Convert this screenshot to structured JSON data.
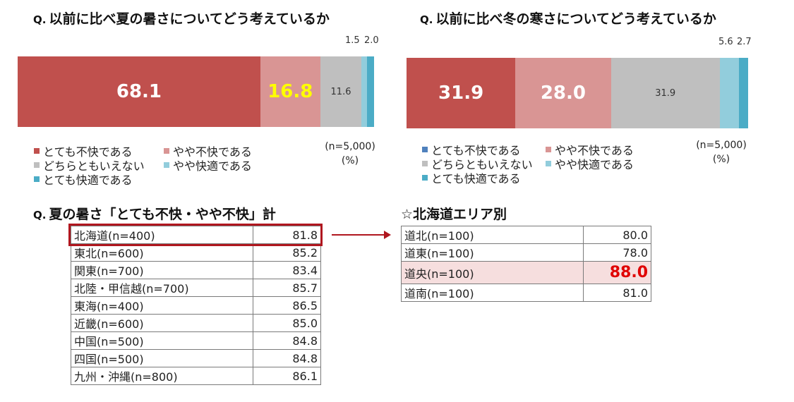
{
  "colors": {
    "very_uncomfortable": "#c0504d",
    "somewhat_uncomfortable": "#d99594",
    "neither": "#bfbfbf",
    "somewhat_comfortable": "#92cddc",
    "very_comfortable": "#4bacc6",
    "legend_very_uncomfortable_winter": "#4f81bd",
    "highlight": "#b0171f"
  },
  "chart_data": [
    {
      "type": "bar",
      "orientation": "horizontal-stacked-100",
      "title_prefix": "Q.",
      "title": "以前に比べ夏の暑さについてどう考えているか",
      "categories": [
        "とても不快である",
        "やや不快である",
        "どちらともいえない",
        "やや快適である",
        "とても快適である"
      ],
      "values": [
        68.1,
        16.8,
        11.6,
        1.5,
        2.0
      ],
      "labels": [
        "68.1",
        "16.8",
        "11.6",
        "1.5",
        "2.0"
      ],
      "note_n": "(n=5,000)",
      "note_unit": "(%)"
    },
    {
      "type": "bar",
      "orientation": "horizontal-stacked-100",
      "title_prefix": "Q.",
      "title": "以前に比べ冬の寒さについてどう考えているか",
      "categories": [
        "とても不快である",
        "やや不快である",
        "どちらともいえない",
        "やや快適である",
        "とても快適である"
      ],
      "values": [
        31.9,
        28.0,
        31.9,
        5.6,
        2.7
      ],
      "labels": [
        "31.9",
        "28.0",
        "31.9",
        "5.6",
        "2.7"
      ],
      "note_n": "(n=5,000)",
      "note_unit": "(%)"
    },
    {
      "type": "table",
      "title_prefix": "Q.",
      "title": "夏の暑さ「とても不快・やや不快」計",
      "rows": [
        {
          "region": "北海道(n=400)",
          "value": "81.8"
        },
        {
          "region": "東北(n=600)",
          "value": "85.2"
        },
        {
          "region": "関東(n=700)",
          "value": "83.4"
        },
        {
          "region": "北陸・甲信越(n=700)",
          "value": "85.7"
        },
        {
          "region": "東海(n=400)",
          "value": "86.5"
        },
        {
          "region": "近畿(n=600)",
          "value": "85.0"
        },
        {
          "region": "中国(n=500)",
          "value": "84.8"
        },
        {
          "region": "四国(n=500)",
          "value": "84.8"
        },
        {
          "region": "九州・沖縄(n=800)",
          "value": "86.1"
        }
      ]
    },
    {
      "type": "table",
      "title": "☆北海道エリア別",
      "rows": [
        {
          "region": "道北(n=100)",
          "value": "80.0"
        },
        {
          "region": "道東(n=100)",
          "value": "78.0"
        },
        {
          "region": "道央(n=100)",
          "value": "88.0"
        },
        {
          "region": "道南(n=100)",
          "value": "81.0"
        }
      ]
    }
  ]
}
